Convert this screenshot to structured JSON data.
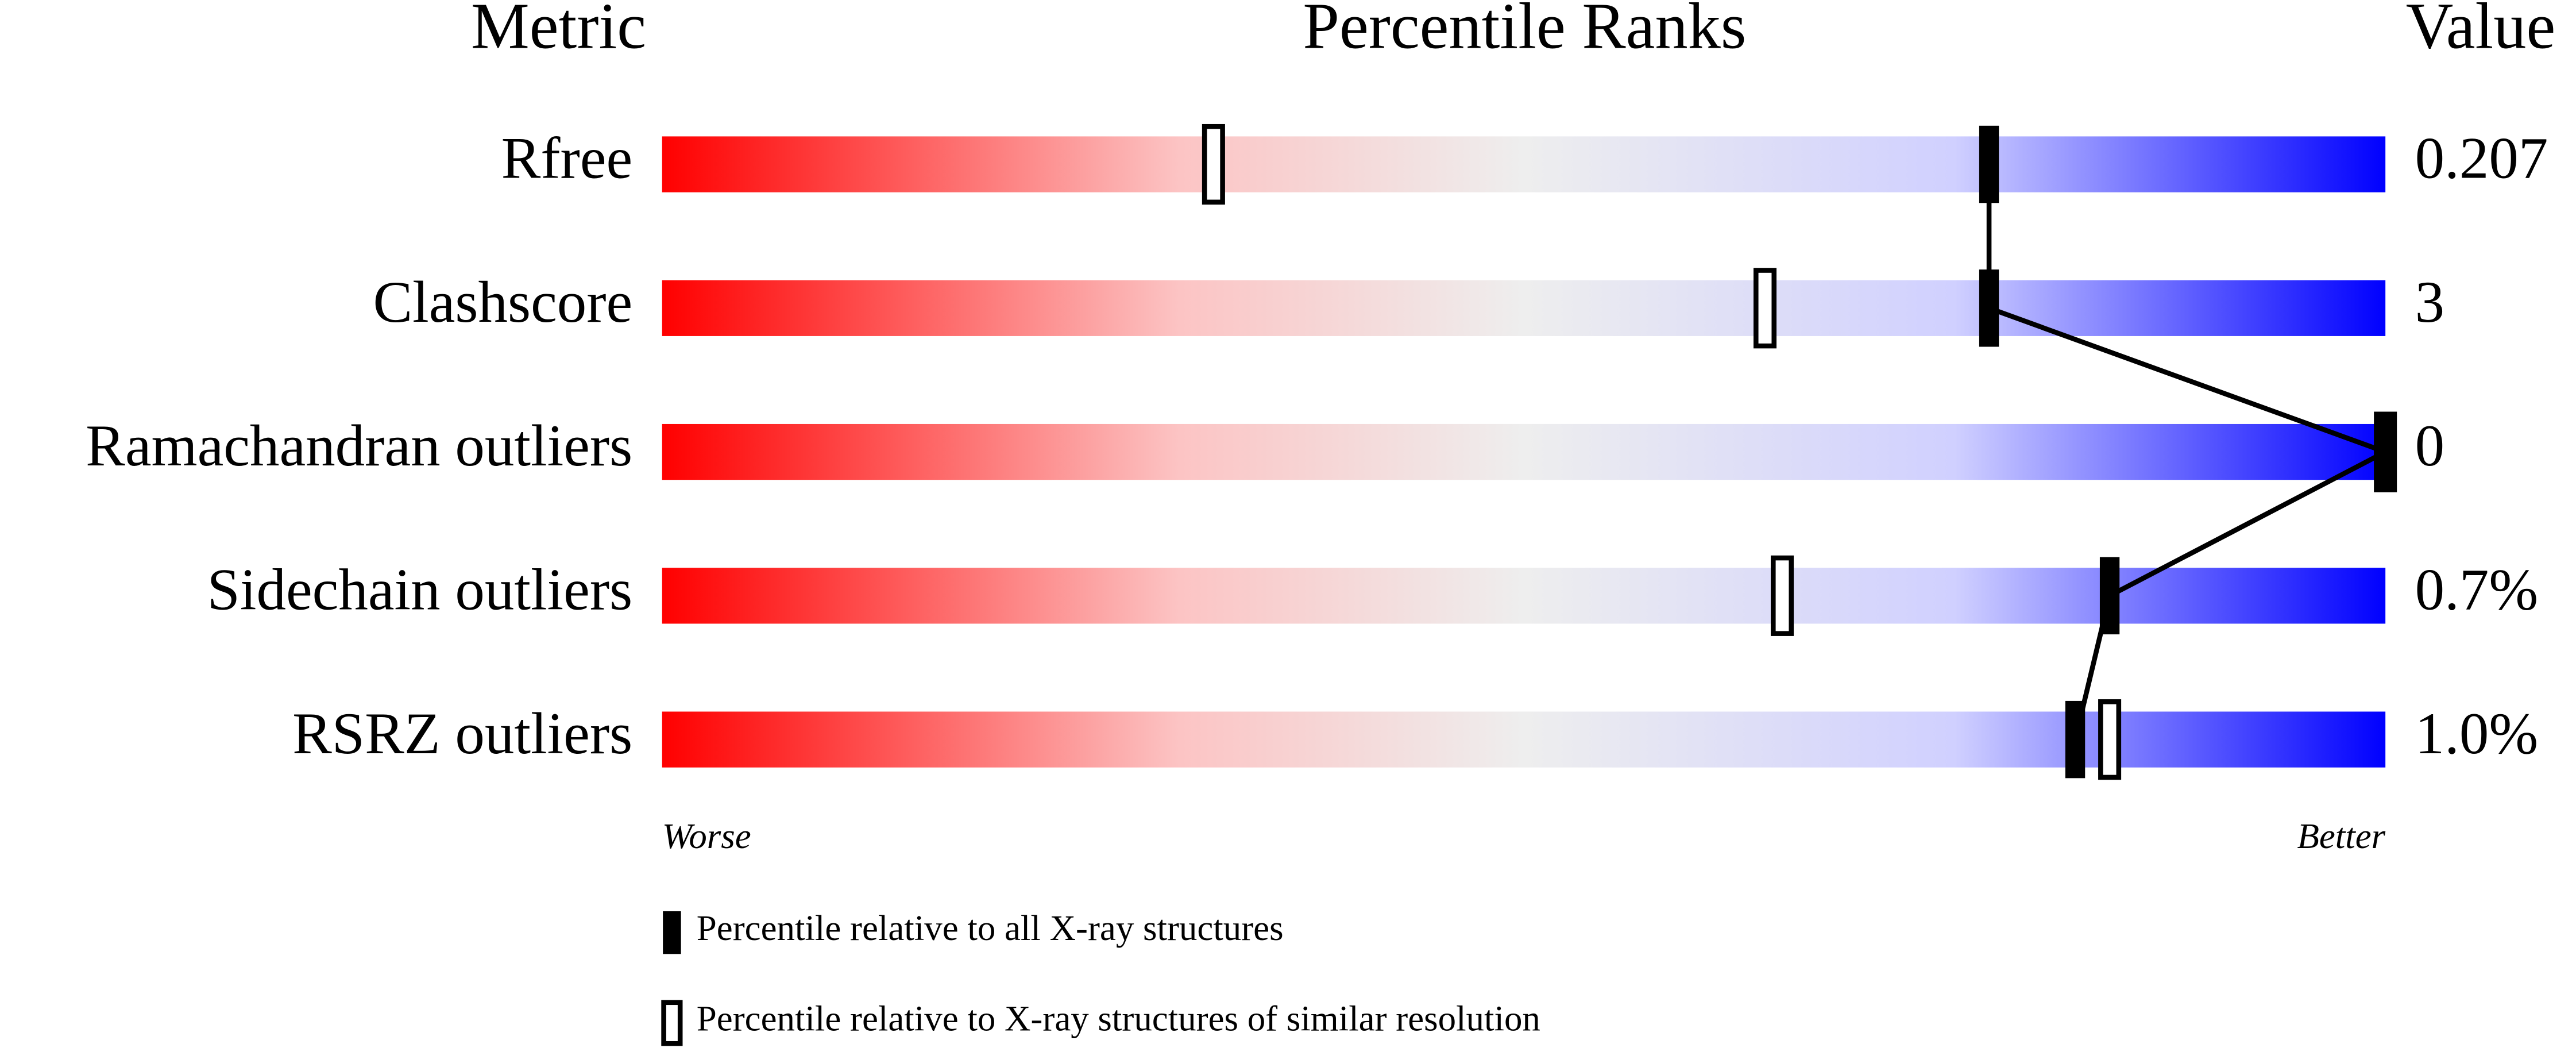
{
  "chart_data": {
    "type": "percentile",
    "headers": [
      "Metric",
      "Percentile Ranks",
      "Value"
    ],
    "categories": [
      "Rfree",
      "Clashscore",
      "Ramachandran outliers",
      "Sidechain outliers",
      "RSRZ outliers"
    ],
    "metric_values": [
      "0.207",
      "3",
      "0",
      "0.7%",
      "1.0%"
    ],
    "series": [
      {
        "name": "Percentile relative to all X-ray structures",
        "color": "#000000",
        "values": [
          77,
          77,
          100,
          84,
          82
        ]
      },
      {
        "name": "Percentile relative to X-ray structures of similar resolution",
        "color": "#ffffff",
        "values": [
          32,
          64,
          100,
          65,
          84
        ]
      }
    ],
    "xlim": [
      0,
      100
    ],
    "axis_labels": [
      "Worse",
      "Better"
    ]
  }
}
